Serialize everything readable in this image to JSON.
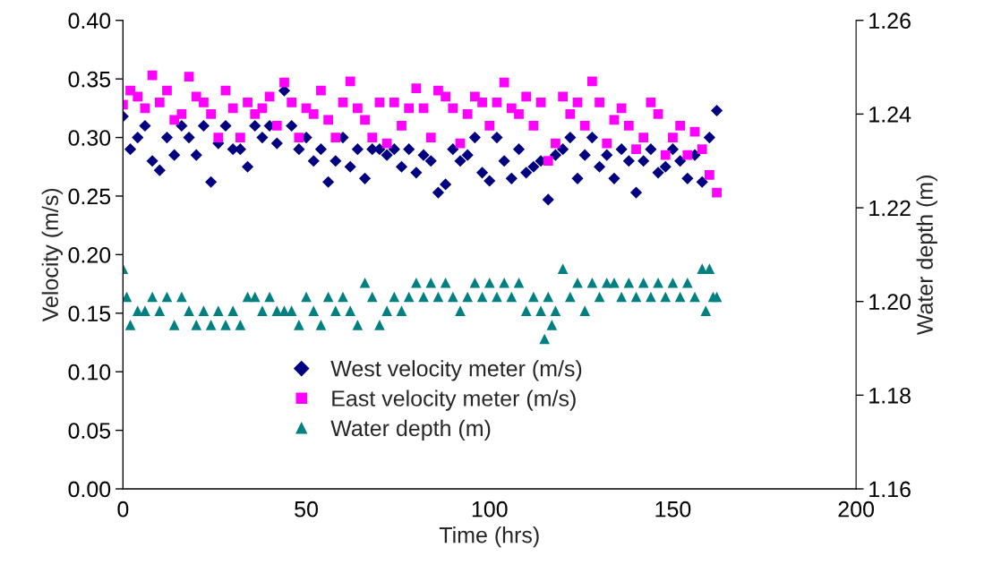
{
  "chart_data": {
    "type": "scatter",
    "xlabel": "Time (hrs)",
    "ylabel": "Velocity (m/s)",
    "y2label": "Water depth (m)",
    "xlim": [
      0,
      200
    ],
    "xticks": [
      0,
      50,
      100,
      150,
      200
    ],
    "ylim": [
      0,
      0.4
    ],
    "yticks": [
      {
        "value": 0,
        "label": "0.00"
      },
      {
        "value": 0.05,
        "label": "0.05"
      },
      {
        "value": 0.1,
        "label": "0.10"
      },
      {
        "value": 0.15,
        "label": "0.15"
      },
      {
        "value": 0.2,
        "label": "0.20"
      },
      {
        "value": 0.25,
        "label": "0.25"
      },
      {
        "value": 0.3,
        "label": "0.30"
      },
      {
        "value": 0.35,
        "label": "0.35"
      },
      {
        "value": 0.4,
        "label": "0.40"
      }
    ],
    "y2lim": [
      1.16,
      1.26
    ],
    "y2ticks": [
      {
        "value": 1.16,
        "label": "1.16"
      },
      {
        "value": 1.18,
        "label": "1.18"
      },
      {
        "value": 1.2,
        "label": "1.20"
      },
      {
        "value": 1.22,
        "label": "1.22"
      },
      {
        "value": 1.24,
        "label": "1.24"
      },
      {
        "value": 1.26,
        "label": "1.26"
      }
    ],
    "legend": "bottom",
    "series": [
      {
        "name": "West velocity meter (m/s)",
        "color": "#000080",
        "marker": "diamond",
        "x": [
          0,
          2,
          4,
          6,
          8,
          10,
          12,
          14,
          16,
          18,
          20,
          22,
          24,
          26,
          28,
          30,
          32,
          34,
          36,
          38,
          40,
          42,
          44,
          46,
          48,
          50,
          52,
          54,
          56,
          58,
          60,
          62,
          64,
          66,
          68,
          70,
          72,
          74,
          76,
          78,
          80,
          82,
          84,
          86,
          88,
          90,
          92,
          94,
          96,
          98,
          100,
          102,
          104,
          106,
          108,
          110,
          112,
          114,
          116,
          118,
          120,
          122,
          124,
          126,
          128,
          130,
          132,
          134,
          136,
          138,
          140,
          142,
          144,
          146,
          148,
          150,
          152,
          154,
          156,
          158,
          160,
          162
        ],
        "values": [
          0.318,
          0.29,
          0.3,
          0.31,
          0.28,
          0.272,
          0.3,
          0.285,
          0.31,
          0.3,
          0.285,
          0.31,
          0.262,
          0.295,
          0.31,
          0.29,
          0.29,
          0.275,
          0.31,
          0.3,
          0.31,
          0.295,
          0.34,
          0.31,
          0.29,
          0.3,
          0.28,
          0.29,
          0.262,
          0.28,
          0.3,
          0.275,
          0.29,
          0.265,
          0.29,
          0.29,
          0.285,
          0.29,
          0.275,
          0.29,
          0.27,
          0.285,
          0.28,
          0.253,
          0.26,
          0.29,
          0.28,
          0.285,
          0.3,
          0.27,
          0.263,
          0.3,
          0.28,
          0.265,
          0.29,
          0.27,
          0.275,
          0.28,
          0.247,
          0.285,
          0.29,
          0.3,
          0.265,
          0.285,
          0.3,
          0.275,
          0.285,
          0.265,
          0.29,
          0.28,
          0.253,
          0.28,
          0.29,
          0.27,
          0.275,
          0.29,
          0.28,
          0.265,
          0.285,
          0.262,
          0.3,
          0.323
        ]
      },
      {
        "name": "East velocity meter (m/s)",
        "color": "#ff00ff",
        "marker": "square",
        "x": [
          0,
          2,
          4,
          6,
          8,
          10,
          12,
          14,
          16,
          18,
          20,
          22,
          24,
          26,
          28,
          30,
          32,
          34,
          36,
          38,
          40,
          42,
          44,
          46,
          48,
          50,
          52,
          54,
          56,
          58,
          60,
          62,
          64,
          66,
          68,
          70,
          72,
          74,
          76,
          78,
          80,
          82,
          84,
          86,
          88,
          90,
          92,
          94,
          96,
          98,
          100,
          102,
          104,
          106,
          108,
          110,
          112,
          114,
          116,
          118,
          120,
          122,
          124,
          126,
          128,
          130,
          132,
          134,
          136,
          138,
          140,
          142,
          144,
          146,
          148,
          150,
          152,
          154,
          156,
          158,
          160,
          162
        ],
        "values": [
          0.328,
          0.34,
          0.335,
          0.325,
          0.353,
          0.33,
          0.34,
          0.315,
          0.32,
          0.352,
          0.335,
          0.33,
          0.32,
          0.3,
          0.34,
          0.325,
          0.3,
          0.33,
          0.32,
          0.325,
          0.335,
          0.31,
          0.347,
          0.33,
          0.3,
          0.325,
          0.32,
          0.34,
          0.315,
          0.3,
          0.33,
          0.348,
          0.325,
          0.315,
          0.3,
          0.33,
          0.295,
          0.33,
          0.31,
          0.325,
          0.342,
          0.325,
          0.3,
          0.34,
          0.335,
          0.325,
          0.295,
          0.32,
          0.335,
          0.33,
          0.31,
          0.33,
          0.347,
          0.325,
          0.32,
          0.335,
          0.31,
          0.33,
          0.28,
          0.295,
          0.335,
          0.32,
          0.33,
          0.31,
          0.348,
          0.33,
          0.295,
          0.315,
          0.325,
          0.31,
          0.29,
          0.3,
          0.33,
          0.32,
          0.285,
          0.3,
          0.31,
          0.285,
          0.305,
          0.29,
          0.268,
          0.253
        ]
      },
      {
        "name": "Water depth (m)",
        "color": "#008080",
        "marker": "triangle",
        "axis": "y2",
        "x": [
          0,
          1,
          2,
          4,
          6,
          8,
          10,
          12,
          14,
          16,
          18,
          20,
          22,
          24,
          26,
          28,
          30,
          32,
          34,
          36,
          38,
          40,
          42,
          44,
          46,
          48,
          50,
          52,
          54,
          56,
          58,
          60,
          62,
          64,
          66,
          68,
          70,
          72,
          74,
          76,
          78,
          80,
          82,
          84,
          86,
          88,
          90,
          92,
          94,
          96,
          98,
          100,
          102,
          104,
          106,
          108,
          110,
          112,
          114,
          115,
          116,
          117,
          118,
          120,
          122,
          124,
          126,
          128,
          130,
          132,
          134,
          136,
          138,
          140,
          142,
          144,
          146,
          148,
          150,
          152,
          154,
          156,
          158,
          159,
          160,
          161,
          162
        ],
        "values": [
          1.207,
          1.201,
          1.195,
          1.198,
          1.198,
          1.201,
          1.198,
          1.201,
          1.195,
          1.201,
          1.198,
          1.195,
          1.198,
          1.195,
          1.198,
          1.195,
          1.198,
          1.195,
          1.201,
          1.201,
          1.198,
          1.201,
          1.198,
          1.198,
          1.198,
          1.195,
          1.201,
          1.198,
          1.195,
          1.201,
          1.198,
          1.201,
          1.198,
          1.195,
          1.204,
          1.201,
          1.195,
          1.198,
          1.201,
          1.198,
          1.201,
          1.204,
          1.201,
          1.204,
          1.201,
          1.204,
          1.201,
          1.198,
          1.201,
          1.204,
          1.201,
          1.204,
          1.201,
          1.204,
          1.201,
          1.204,
          1.198,
          1.201,
          1.198,
          1.192,
          1.201,
          1.195,
          1.198,
          1.207,
          1.201,
          1.204,
          1.198,
          1.204,
          1.201,
          1.204,
          1.204,
          1.201,
          1.204,
          1.201,
          1.204,
          1.201,
          1.204,
          1.201,
          1.204,
          1.201,
          1.204,
          1.201,
          1.207,
          1.198,
          1.207,
          1.201,
          1.201
        ]
      }
    ]
  }
}
